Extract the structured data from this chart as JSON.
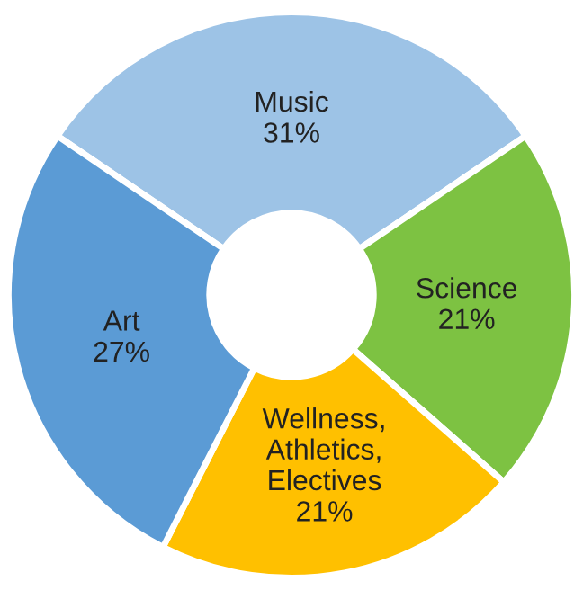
{
  "chart_data": {
    "type": "donut",
    "categories": [
      "Music",
      "Science",
      "Wellness,\nAthletics,\nElectives",
      "Art"
    ],
    "values": [
      31,
      21,
      21,
      27
    ],
    "colors": [
      "#9dc3e6",
      "#7dc242",
      "#ffc000",
      "#5b9bd5"
    ],
    "value_labels": [
      "31%",
      "21%",
      "21%",
      "27%"
    ],
    "legend": false
  }
}
